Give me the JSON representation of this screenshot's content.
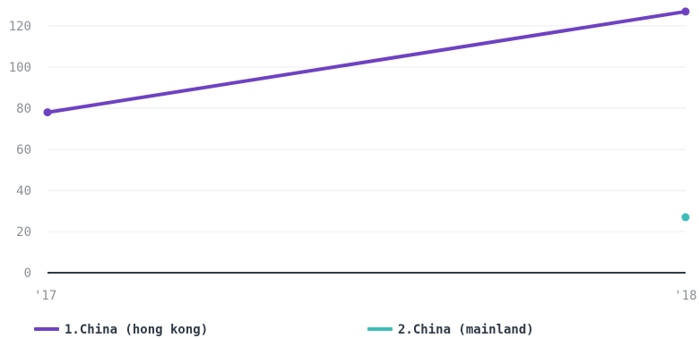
{
  "chart_data": {
    "type": "line",
    "title": "",
    "xlabel": "",
    "ylabel": "",
    "categories": [
      "'17",
      "'18"
    ],
    "ylim": [
      0,
      128
    ],
    "yticks": [
      0,
      20,
      40,
      60,
      80,
      100,
      120
    ],
    "grid": true,
    "legend_position": "bottom",
    "series": [
      {
        "name": "1.China (hong kong)",
        "color": "#6f42c1",
        "values": [
          78,
          127
        ]
      },
      {
        "name": "2.China (mainland)",
        "color": "#3dbdb9",
        "values": [
          null,
          27
        ]
      }
    ]
  }
}
